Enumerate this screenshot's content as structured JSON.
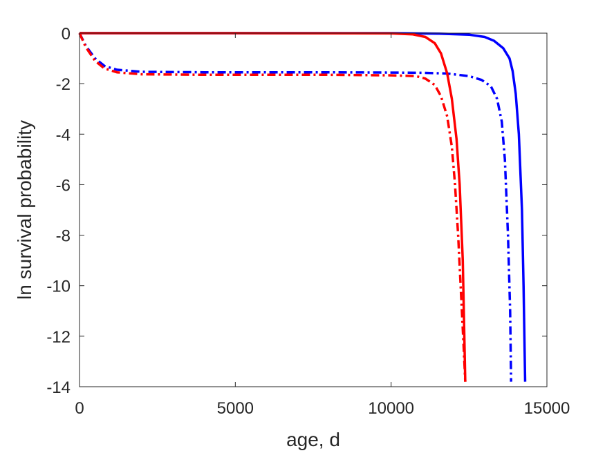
{
  "chart_data": {
    "type": "line",
    "title": "",
    "xlabel": "age, d",
    "ylabel": "ln survival probability",
    "xlim": [
      0,
      15000
    ],
    "ylim": [
      -14,
      0
    ],
    "x_ticks": [
      0,
      5000,
      10000,
      15000
    ],
    "y_ticks": [
      0,
      -2,
      -4,
      -6,
      -8,
      -10,
      -12,
      -14
    ],
    "x_tick_labels": [
      "0",
      "5000",
      "10000",
      "15000"
    ],
    "y_tick_labels": [
      "0",
      "-2",
      "-4",
      "-6",
      "-8",
      "-10",
      "-12",
      "-14"
    ],
    "grid": false,
    "legend": "none",
    "series": [
      {
        "color": "#0000ff",
        "line_style": "solid",
        "points": [
          [
            0,
            0
          ],
          [
            5000,
            0
          ],
          [
            10000,
            0
          ],
          [
            11500,
            -0.02
          ],
          [
            12500,
            -0.06
          ],
          [
            13000,
            -0.15
          ],
          [
            13300,
            -0.3
          ],
          [
            13600,
            -0.6
          ],
          [
            13800,
            -1.0
          ],
          [
            13900,
            -1.5
          ],
          [
            14000,
            -2.4
          ],
          [
            14100,
            -4.0
          ],
          [
            14200,
            -7.0
          ],
          [
            14250,
            -10.0
          ],
          [
            14300,
            -13.8
          ]
        ]
      },
      {
        "color": "#0000ff",
        "line_style": "dashdot",
        "points": [
          [
            0,
            0
          ],
          [
            200,
            -0.5
          ],
          [
            500,
            -1.0
          ],
          [
            800,
            -1.3
          ],
          [
            1200,
            -1.45
          ],
          [
            2000,
            -1.53
          ],
          [
            4000,
            -1.55
          ],
          [
            8000,
            -1.55
          ],
          [
            10000,
            -1.56
          ],
          [
            11000,
            -1.57
          ],
          [
            11800,
            -1.6
          ],
          [
            12500,
            -1.7
          ],
          [
            12900,
            -1.85
          ],
          [
            13200,
            -2.1
          ],
          [
            13400,
            -2.6
          ],
          [
            13550,
            -3.5
          ],
          [
            13650,
            -5.0
          ],
          [
            13750,
            -8.0
          ],
          [
            13820,
            -11.0
          ],
          [
            13850,
            -13.8
          ]
        ]
      },
      {
        "color": "#ff0000",
        "line_style": "solid",
        "points": [
          [
            0,
            0
          ],
          [
            5000,
            0
          ],
          [
            10000,
            -0.01
          ],
          [
            10700,
            -0.05
          ],
          [
            11100,
            -0.15
          ],
          [
            11400,
            -0.4
          ],
          [
            11600,
            -0.8
          ],
          [
            11800,
            -1.6
          ],
          [
            11950,
            -2.6
          ],
          [
            12100,
            -4.2
          ],
          [
            12200,
            -6.0
          ],
          [
            12300,
            -9.0
          ],
          [
            12380,
            -13.8
          ]
        ]
      },
      {
        "color": "#ff0000",
        "line_style": "dashdot",
        "points": [
          [
            0,
            0
          ],
          [
            200,
            -0.55
          ],
          [
            500,
            -1.1
          ],
          [
            800,
            -1.4
          ],
          [
            1200,
            -1.55
          ],
          [
            2000,
            -1.63
          ],
          [
            4000,
            -1.65
          ],
          [
            8000,
            -1.65
          ],
          [
            10000,
            -1.67
          ],
          [
            10800,
            -1.7
          ],
          [
            11100,
            -1.8
          ],
          [
            11400,
            -2.05
          ],
          [
            11600,
            -2.5
          ],
          [
            11800,
            -3.3
          ],
          [
            11950,
            -4.5
          ],
          [
            12050,
            -6.0
          ],
          [
            12150,
            -8.0
          ],
          [
            12250,
            -10.5
          ],
          [
            12330,
            -12.5
          ],
          [
            12380,
            -13.8
          ]
        ]
      }
    ]
  }
}
